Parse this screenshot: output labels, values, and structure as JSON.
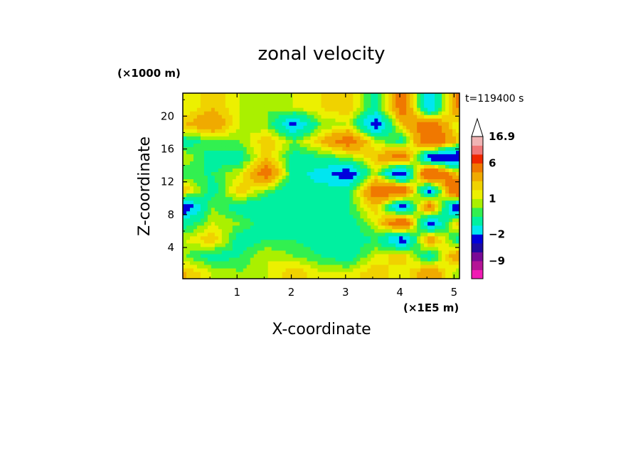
{
  "chart_data": {
    "type": "heatmap",
    "title": "zonal velocity",
    "xlabel": "X-coordinate",
    "ylabel": "Z-coordinate",
    "x_unit": "(×1E5 m)",
    "y_unit": "(×1000 m)",
    "time_label": "t=119400 s",
    "xlim": [
      0,
      5.1
    ],
    "ylim": [
      0.2,
      22.8
    ],
    "x_ticks": [
      "1",
      "2",
      "3",
      "4",
      "5"
    ],
    "x_tick_values": [
      1,
      2,
      3,
      4,
      5
    ],
    "y_ticks": [
      "4",
      "8",
      "12",
      "16",
      "20"
    ],
    "y_tick_values": [
      4,
      8,
      12,
      16,
      20
    ],
    "grid_x": [
      0.05,
      0.55,
      1.05,
      1.55,
      2.05,
      2.55,
      3.05,
      3.55,
      4.05,
      4.55,
      5.05
    ],
    "grid_z": [
      1,
      3,
      5,
      7,
      9,
      11,
      13,
      15,
      17,
      19,
      21
    ],
    "values": [
      [
        2,
        1,
        0.5,
        1,
        2,
        1,
        1,
        2,
        1,
        3,
        0.5
      ],
      [
        0.5,
        -0.5,
        0,
        1,
        0.5,
        0,
        -0.5,
        1,
        2,
        -1,
        3
      ],
      [
        1,
        2,
        -0.5,
        0,
        0,
        -0.5,
        -0.5,
        0,
        -3,
        3,
        -0.5
      ],
      [
        -0.5,
        1,
        0.5,
        -0.5,
        0,
        0,
        -0.5,
        1,
        5,
        -3,
        2
      ],
      [
        -3,
        0.5,
        -0.5,
        -1,
        -0.5,
        -0.5,
        0,
        2,
        -3,
        4,
        -4
      ],
      [
        2,
        -0.5,
        2,
        0.5,
        -1,
        -0.5,
        -0.5,
        4,
        5,
        -3,
        6
      ],
      [
        0,
        0,
        1,
        4,
        -0.5,
        -1.5,
        -3,
        1,
        -4,
        6,
        2
      ],
      [
        1,
        -0.5,
        -0.5,
        2,
        -0.5,
        0,
        0.5,
        2,
        4,
        -3,
        -4
      ],
      [
        -0.5,
        0.5,
        0.5,
        2,
        0.5,
        2,
        4,
        1,
        -0.5,
        5,
        2
      ],
      [
        2,
        3,
        1,
        0.5,
        -2.5,
        0.5,
        1,
        -3,
        2,
        4,
        1
      ],
      [
        1,
        2,
        1,
        0.5,
        1,
        1.5,
        2,
        -0.5,
        4,
        -2,
        3
      ]
    ],
    "colorbar": {
      "labels": [
        "16.9",
        "6",
        "1",
        "−2",
        "−9"
      ],
      "label_values": [
        16.9,
        6,
        1,
        -2,
        -9
      ],
      "levels": [
        {
          "from": -16,
          "to": -12,
          "color": "#f01cb4"
        },
        {
          "from": -12,
          "to": -9,
          "color": "#b41496"
        },
        {
          "from": -9,
          "to": -6,
          "color": "#780a96"
        },
        {
          "from": -6,
          "to": -4,
          "color": "#1e0aa0"
        },
        {
          "from": -4,
          "to": -2,
          "color": "#0000dc"
        },
        {
          "from": -2,
          "to": -1,
          "color": "#00e6f0"
        },
        {
          "from": -1,
          "to": 0,
          "color": "#00f0a0"
        },
        {
          "from": 0,
          "to": 0.5,
          "color": "#32f050"
        },
        {
          "from": 0.5,
          "to": 1,
          "color": "#aaf000"
        },
        {
          "from": 1,
          "to": 1.5,
          "color": "#ecf000"
        },
        {
          "from": 1.5,
          "to": 2,
          "color": "#f0d200"
        },
        {
          "from": 2,
          "to": 3,
          "color": "#f0aa00"
        },
        {
          "from": 3,
          "to": 6,
          "color": "#f07800"
        },
        {
          "from": 6,
          "to": 8,
          "color": "#f02800"
        },
        {
          "from": 8,
          "to": 12,
          "color": "#f07878"
        },
        {
          "from": 12,
          "to": 16.9,
          "color": "#f0b4b4"
        },
        {
          "from": 16.9,
          "to": 20,
          "color": "#ffffff"
        }
      ]
    }
  }
}
